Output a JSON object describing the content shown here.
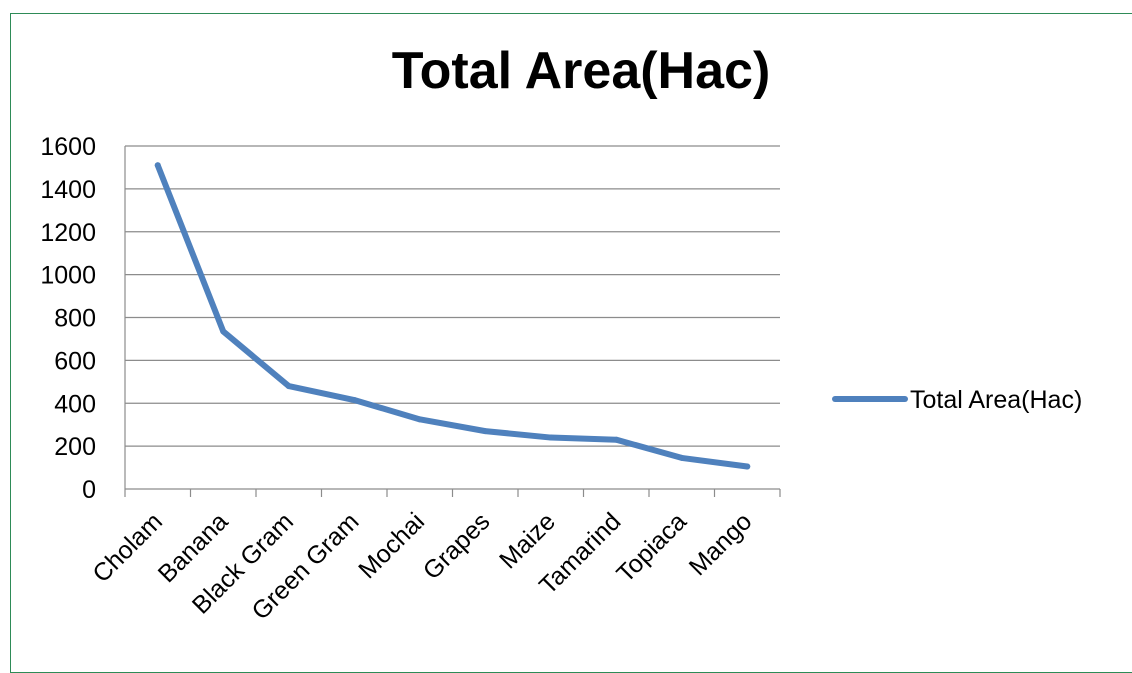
{
  "chart_data": {
    "type": "line",
    "title": "Total Area(Hac)",
    "xlabel": "",
    "ylabel": "",
    "categories": [
      "Cholam",
      "Banana",
      "Black Gram",
      "Green Gram",
      "Mochai",
      "Grapes",
      "Maize",
      "Tamarind",
      "Topiaca",
      "Mango"
    ],
    "series": [
      {
        "name": "Total Area(Hac)",
        "values": [
          1510,
          735,
          480,
          415,
          325,
          270,
          240,
          230,
          145,
          105
        ],
        "color": "#4f81bd"
      }
    ],
    "ylim": [
      0,
      1600
    ],
    "yticks": [
      0,
      200,
      400,
      600,
      800,
      1000,
      1200,
      1400,
      1600
    ],
    "grid": true,
    "legend": "right"
  }
}
